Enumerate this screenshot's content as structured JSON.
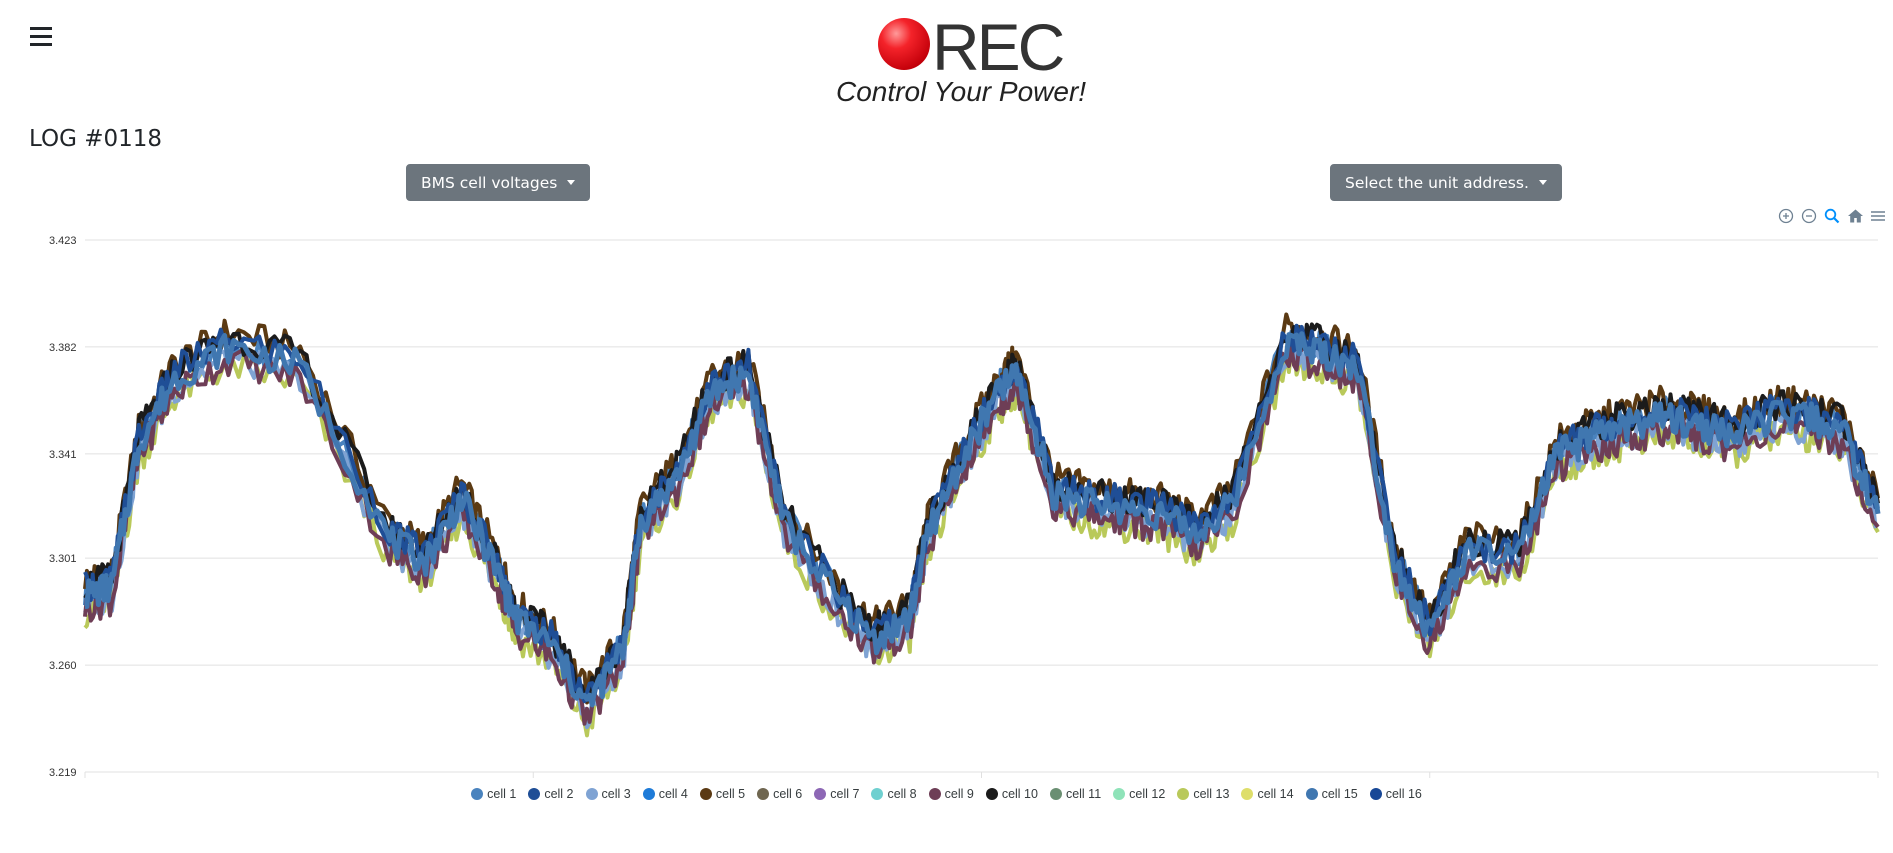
{
  "header": {
    "menu_icon": "hamburger-icon",
    "logo_text": "REC",
    "tagline": "Control Your Power!"
  },
  "log_title": "LOG #0118",
  "dropdowns": {
    "data_type": "BMS cell voltages",
    "unit_address": "Select the unit address."
  },
  "toolbar": [
    "zoom-in-icon",
    "zoom-out-icon",
    "zoom-select-icon",
    "home-icon",
    "menu-icon"
  ],
  "chart_data": {
    "type": "line",
    "yticks": [
      "3.423",
      "3.382",
      "3.341",
      "3.301",
      "3.260",
      "3.219"
    ],
    "ylim": [
      3.219,
      3.423
    ],
    "grid": true,
    "legend_position": "bottom",
    "series_names": [
      "cell 1",
      "cell 2",
      "cell 3",
      "cell 4",
      "cell 5",
      "cell 6",
      "cell 7",
      "cell 8",
      "cell 9",
      "cell 10",
      "cell 11",
      "cell 12",
      "cell 13",
      "cell 14",
      "cell 15",
      "cell 16"
    ],
    "series_colors": [
      "#4a83be",
      "#1f4e96",
      "#7fa3d3",
      "#1e7bd8",
      "#5b3a13",
      "#6f6650",
      "#8d67b5",
      "#6fd0d0",
      "#6e3e56",
      "#1b1b1b",
      "#6a8f72",
      "#8fe3b9",
      "#b9c95a",
      "#dede6a",
      "#4077b0",
      "#174796"
    ],
    "x": [
      0,
      1.5,
      3,
      5,
      8,
      12,
      17,
      19,
      21,
      23,
      24,
      26,
      28,
      30,
      31,
      33,
      35,
      37,
      39,
      42,
      44,
      46,
      47,
      49,
      51,
      52,
      54,
      56,
      58,
      60,
      62,
      64,
      67,
      69,
      71,
      73,
      75,
      77,
      80,
      82,
      84,
      86,
      88,
      90,
      92,
      94,
      96,
      98,
      100
    ],
    "base_series": [
      3.287,
      3.29,
      3.345,
      3.37,
      3.382,
      3.375,
      3.308,
      3.3,
      3.324,
      3.296,
      3.278,
      3.268,
      3.244,
      3.266,
      3.315,
      3.332,
      3.365,
      3.372,
      3.315,
      3.285,
      3.27,
      3.278,
      3.31,
      3.34,
      3.365,
      3.372,
      3.326,
      3.322,
      3.32,
      3.318,
      3.31,
      3.322,
      3.384,
      3.38,
      3.374,
      3.301,
      3.272,
      3.303,
      3.302,
      3.34,
      3.347,
      3.352,
      3.355,
      3.352,
      3.348,
      3.355,
      3.355,
      3.35,
      3.318
    ],
    "ranges": [
      {
        "name": "cell 1",
        "spread": 0.002
      },
      {
        "name": "cell 5",
        "spread": 0.006
      },
      {
        "name": "cell 13",
        "spread": -0.007
      },
      {
        "name": "cell 3",
        "spread": -0.004
      },
      {
        "name": "cell 9",
        "spread": -0.005
      },
      {
        "name": "cell 10",
        "spread": 0.004
      },
      {
        "name": "cell 2",
        "spread": 0.003
      },
      {
        "name": "cell 15",
        "spread": 0.0
      }
    ]
  }
}
